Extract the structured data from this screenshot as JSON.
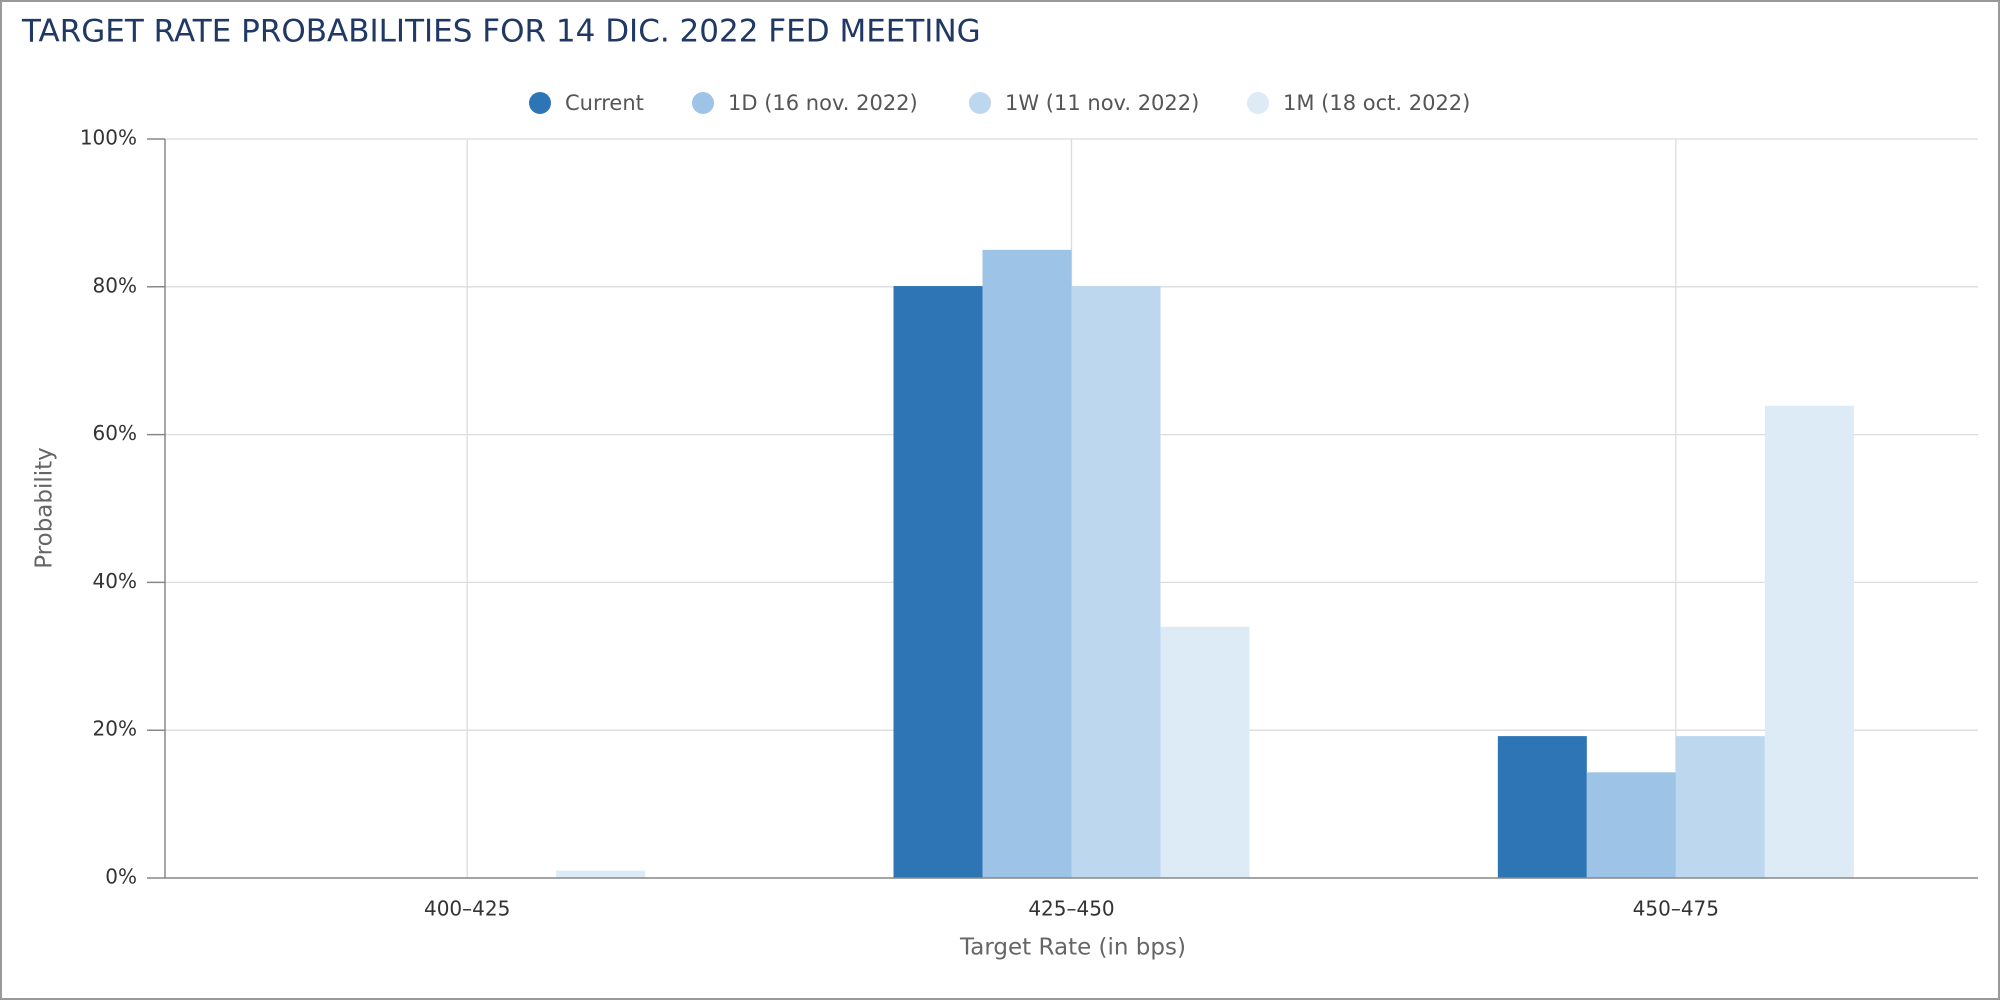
{
  "chart_data": {
    "type": "bar",
    "title": "TARGET RATE PROBABILITIES FOR 14 DIC. 2022 FED MEETING",
    "x_label": "Target Rate (in bps)",
    "y_label": "Probability",
    "categories": [
      "400–425",
      "425–450",
      "450–475"
    ],
    "series": [
      {
        "name": "Current",
        "color": "#2e75b6",
        "values": [
          0,
          80.1,
          19.2
        ]
      },
      {
        "name": "1D (16 nov. 2022)",
        "color": "#9dc3e6",
        "values": [
          0,
          85.0,
          14.3
        ]
      },
      {
        "name": "1W (11 nov. 2022)",
        "color": "#bdd7ee",
        "values": [
          0,
          80.1,
          19.2
        ]
      },
      {
        "name": "1M (18 oct. 2022)",
        "color": "#ddebf7",
        "values": [
          1.0,
          34.0,
          63.9
        ]
      }
    ],
    "ylim": [
      0,
      100
    ],
    "yticks": [
      {
        "value": 0,
        "label": "0%"
      },
      {
        "value": 20,
        "label": "20%"
      },
      {
        "value": 40,
        "label": "40%"
      },
      {
        "value": 60,
        "label": "60%"
      },
      {
        "value": 80,
        "label": "80%"
      },
      {
        "value": 100,
        "label": "100%"
      }
    ],
    "grid": true,
    "legend": "top"
  }
}
